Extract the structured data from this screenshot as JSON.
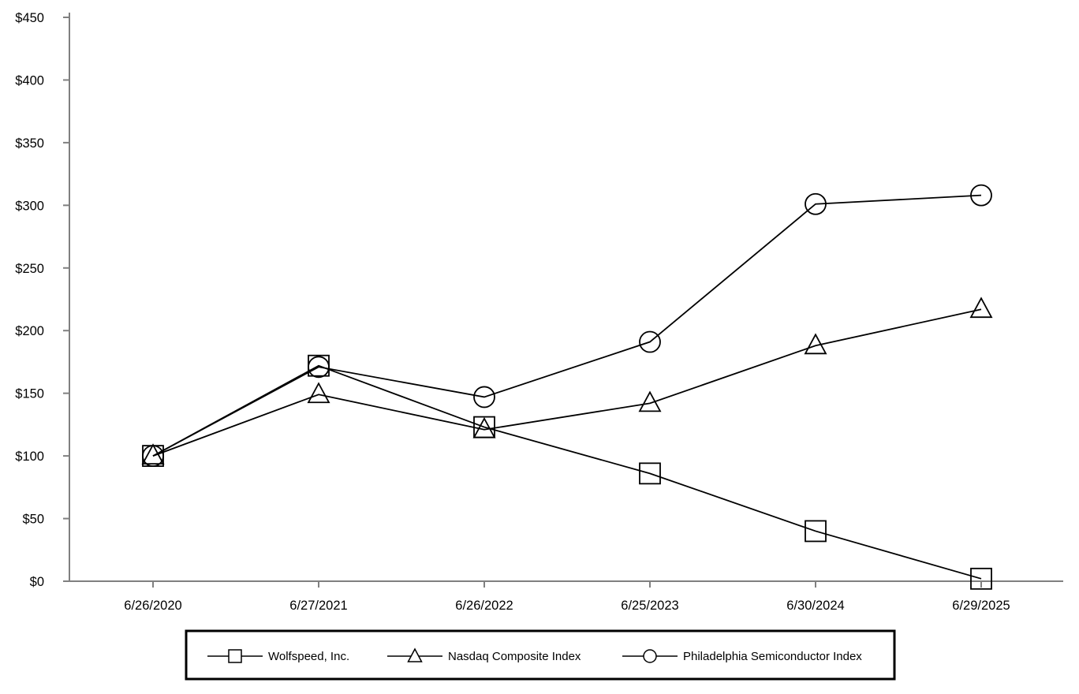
{
  "chart_data": {
    "type": "line",
    "x": [
      "6/26/2020",
      "6/27/2021",
      "6/26/2022",
      "6/25/2023",
      "6/30/2024",
      "6/29/2025"
    ],
    "series": [
      {
        "name": "Wolfspeed, Inc.",
        "marker": "square",
        "values": [
          100,
          172,
          123,
          86,
          40,
          2
        ]
      },
      {
        "name": "Nasdaq Composite Index",
        "marker": "triangle",
        "values": [
          100,
          149,
          121,
          142,
          188,
          217
        ]
      },
      {
        "name": "Philadelphia Semiconductor Index",
        "marker": "circle",
        "values": [
          100,
          171,
          147,
          191,
          301,
          308
        ]
      }
    ],
    "yticks": [
      "$0",
      "$50",
      "$100",
      "$150",
      "$200",
      "$250",
      "$300",
      "$350",
      "$400",
      "$450"
    ],
    "ylim": [
      0,
      450
    ],
    "grid": false,
    "legend_position": "bottom-center",
    "colors": {
      "line": "#000000",
      "axis": "#808080"
    }
  }
}
